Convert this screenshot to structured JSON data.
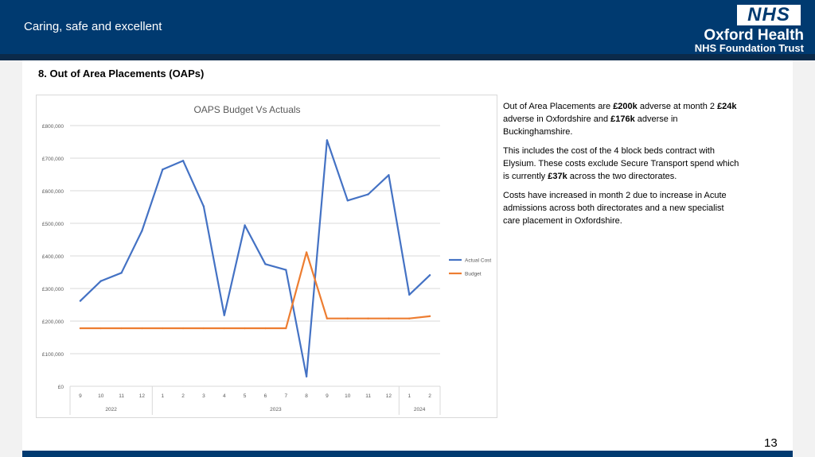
{
  "header": {
    "tagline": "Caring, safe and excellent",
    "logo_mark": "NHS",
    "org_name": "Oxford Health",
    "org_sub": "NHS Foundation Trust"
  },
  "section_title": "8. Out of Area Placements (OAPs)",
  "commentary": [
    [
      {
        "t": "Out of Area Placements are "
      },
      {
        "t": "£200k",
        "b": true
      },
      {
        "t": " adverse at month 2 "
      },
      {
        "t": "£24k",
        "b": true
      },
      {
        "t": " adverse in Oxfordshire and "
      },
      {
        "t": "£176k",
        "b": true
      },
      {
        "t": " adverse in Buckinghamshire."
      }
    ],
    [
      {
        "t": "This includes the cost of the 4 block beds contract with Elysium.  These costs exclude Secure Transport spend which is currently "
      },
      {
        "t": "£37k",
        "b": true
      },
      {
        "t": " across the two directorates."
      }
    ],
    [
      {
        "t": "Costs have increased in month 2 due to increase in Acute admissions across both directorates and a new specialist care placement in Oxfordshire."
      }
    ]
  ],
  "page_number": "13",
  "colors": {
    "header_bg": "#003a70",
    "actual": "#4472c4",
    "budget": "#ed7d31",
    "grid": "#d9d9d9"
  },
  "chart_data": {
    "type": "line",
    "title": "OAPS Budget Vs Actuals",
    "categories": [
      "9",
      "10",
      "11",
      "12",
      "1",
      "2",
      "3",
      "4",
      "5",
      "6",
      "7",
      "8",
      "9",
      "10",
      "11",
      "12",
      "1",
      "2"
    ],
    "groups": [
      {
        "label": "2022",
        "count": 4
      },
      {
        "label": "2023",
        "count": 12
      },
      {
        "label": "2024",
        "count": 2
      }
    ],
    "yticks": [
      "£0",
      "£100,000",
      "£200,000",
      "£300,000",
      "£400,000",
      "£500,000",
      "£600,000",
      "£700,000",
      "£800,000"
    ],
    "ylim": [
      0,
      800000
    ],
    "grid": true,
    "legend_position": "right",
    "series": [
      {
        "name": "Actual Cost",
        "color": "#4472c4",
        "values": [
          262000,
          323000,
          348000,
          477000,
          665000,
          692000,
          552000,
          218000,
          494000,
          375000,
          357000,
          30000,
          755000,
          570000,
          589000,
          648000,
          281000,
          341000
        ]
      },
      {
        "name": "Budget",
        "color": "#ed7d31",
        "values": [
          178000,
          178000,
          178000,
          178000,
          178000,
          178000,
          178000,
          178000,
          178000,
          178000,
          178000,
          411000,
          208000,
          208000,
          208000,
          208000,
          208000,
          215000
        ]
      }
    ]
  }
}
